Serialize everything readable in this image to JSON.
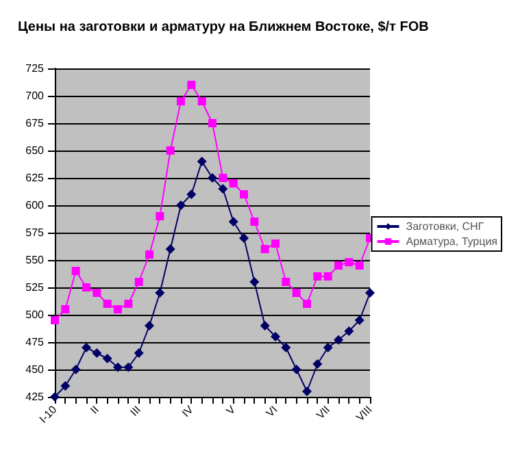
{
  "chart_data": {
    "type": "line",
    "title": "Цены на заготовки и арматуру на Ближнем Востоке, $/т FOB",
    "categories": [
      "I-10",
      null,
      null,
      null,
      "II",
      null,
      null,
      null,
      "III",
      null,
      null,
      null,
      null,
      "IV",
      null,
      null,
      null,
      "V",
      null,
      null,
      null,
      "VI",
      null,
      null,
      null,
      null,
      "VII",
      null,
      null,
      null,
      "VIII"
    ],
    "series": [
      {
        "name": "Заготовки, СНГ",
        "color": "#000066",
        "marker": "diamond",
        "values": [
          425,
          435,
          450,
          470,
          465,
          460,
          452,
          452,
          465,
          490,
          520,
          560,
          600,
          610,
          640,
          625,
          615,
          585,
          570,
          530,
          490,
          480,
          470,
          450,
          430,
          455,
          470,
          477,
          485,
          495,
          520
        ]
      },
      {
        "name": "Арматура, Турция",
        "color": "#ff00ff",
        "marker": "square",
        "values": [
          495,
          505,
          540,
          525,
          520,
          510,
          505,
          510,
          530,
          555,
          590,
          650,
          695,
          710,
          695,
          675,
          625,
          620,
          610,
          585,
          560,
          565,
          530,
          520,
          510,
          535,
          535,
          545,
          548,
          545,
          570
        ]
      }
    ],
    "ylim": [
      425,
      725
    ],
    "yticks": [
      425,
      450,
      475,
      500,
      525,
      550,
      575,
      600,
      625,
      650,
      675,
      700,
      725
    ],
    "grid": "y",
    "legend": "right"
  }
}
